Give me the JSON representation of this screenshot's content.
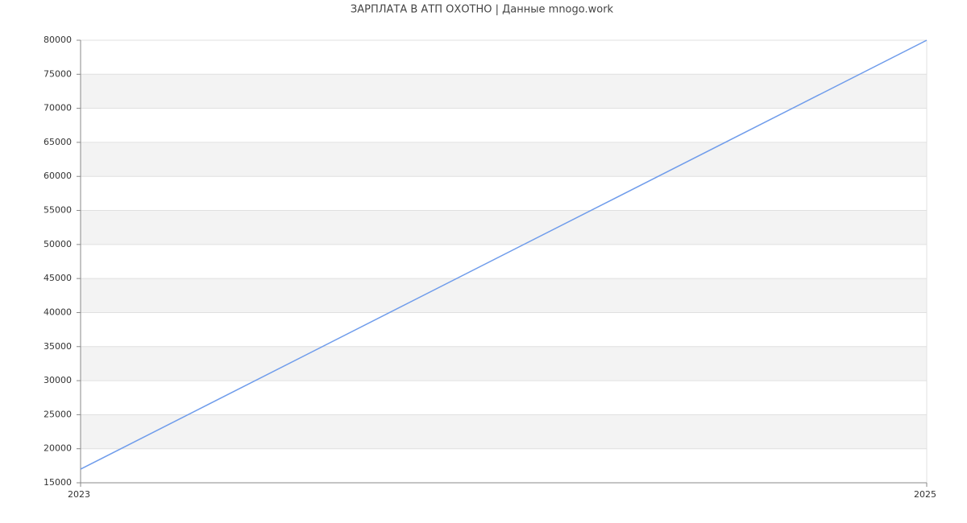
{
  "chart_data": {
    "type": "line",
    "title": "ЗАРПЛАТА В АТП ОХОТНО | Данные mnogo.work",
    "x": [
      2023,
      2025
    ],
    "series": [
      {
        "name": null,
        "color": "#6f9ceb",
        "values": [
          17000,
          80000
        ]
      }
    ],
    "xlim": [
      2023,
      2025
    ],
    "xticks": [
      2023,
      2025
    ],
    "ylim": [
      15000,
      80000
    ],
    "yticks": [
      15000,
      20000,
      25000,
      30000,
      35000,
      40000,
      45000,
      50000,
      55000,
      60000,
      65000,
      70000,
      75000,
      80000
    ],
    "grid": true
  }
}
